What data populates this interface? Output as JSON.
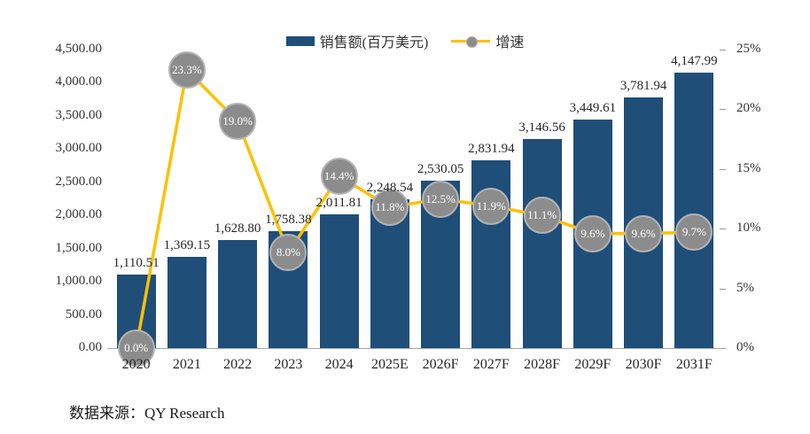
{
  "legend": {
    "sales_label": "销售额(百万美元)",
    "growth_label": "增速"
  },
  "source": "数据来源：QY Research",
  "colors": {
    "bar": "#1F4E79",
    "line": "#FFC000",
    "marker_fill": "#8C8C8C",
    "marker_border": "#B3B3B3",
    "marker_text": "#FFFFFF",
    "axis_text": "#333333",
    "label_text": "#262626",
    "baseline": "#A6A6A6",
    "tick": "#999999"
  },
  "chart_data": {
    "type": "combo",
    "title": "",
    "categories": [
      "2020",
      "2021",
      "2022",
      "2023",
      "2024",
      "2025E",
      "2026F",
      "2027F",
      "2028F",
      "2029F",
      "2030F",
      "2031F"
    ],
    "series": [
      {
        "name": "销售额(百万美元)",
        "type": "bar",
        "values": [
          1110.51,
          1369.15,
          1628.8,
          1758.38,
          2011.81,
          2248.54,
          2530.05,
          2831.94,
          3146.56,
          3449.61,
          3781.94,
          4147.99
        ],
        "labels": [
          "1,110.51",
          "1,369.15",
          "1,628.80",
          "1,758.38",
          "2,011.81",
          "2,248.54",
          "2,530.05",
          "2,831.94",
          "3,146.56",
          "3,449.61",
          "3,781.94",
          "4,147.99"
        ]
      },
      {
        "name": "增速",
        "type": "line",
        "values": [
          0.0,
          23.3,
          19.0,
          8.0,
          14.4,
          11.8,
          12.5,
          11.9,
          11.1,
          9.6,
          9.6,
          9.7
        ],
        "labels": [
          "0.0%",
          "23.3%",
          "19.0%",
          "8.0%",
          "14.4%",
          "11.8%",
          "12.5%",
          "11.9%",
          "11.1%",
          "9.6%",
          "9.6%",
          "9.7%"
        ]
      }
    ],
    "left_axis": {
      "min": 0,
      "max": 4500,
      "ticks": [
        "4,500.00",
        "4,000.00",
        "3,500.00",
        "3,000.00",
        "2,500.00",
        "2,000.00",
        "1,500.00",
        "1,000.00",
        "500.00",
        "0.00"
      ]
    },
    "right_axis": {
      "min": 0,
      "max": 25,
      "ticks": [
        "25%",
        "20%",
        "15%",
        "10%",
        "5%",
        "0%"
      ]
    },
    "grid": false,
    "legend_position": "top"
  }
}
